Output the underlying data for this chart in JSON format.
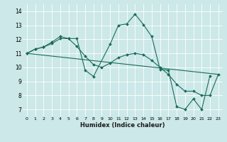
{
  "xlabel": "Humidex (Indice chaleur)",
  "bg_color": "#cce8e8",
  "grid_color": "#ffffff",
  "line_color": "#1a6b5a",
  "xlim": [
    -0.5,
    23.5
  ],
  "ylim": [
    6.5,
    14.5
  ],
  "xticks": [
    0,
    1,
    2,
    3,
    4,
    5,
    6,
    7,
    8,
    9,
    10,
    11,
    12,
    13,
    14,
    15,
    16,
    17,
    18,
    19,
    20,
    21,
    22,
    23
  ],
  "yticks": [
    7,
    8,
    9,
    10,
    11,
    12,
    13,
    14
  ],
  "line1_x": [
    0,
    1,
    2,
    3,
    4,
    5,
    6,
    7,
    8,
    10,
    11,
    12,
    13,
    14,
    15,
    16,
    17,
    18,
    19,
    20,
    21,
    22
  ],
  "line1_y": [
    11.0,
    11.3,
    11.45,
    11.8,
    12.2,
    12.05,
    12.05,
    9.8,
    9.35,
    11.65,
    13.0,
    13.1,
    13.8,
    13.05,
    12.2,
    9.85,
    9.8,
    7.2,
    7.0,
    7.75,
    7.0,
    9.4
  ],
  "line2_x": [
    0,
    1,
    2,
    3,
    4,
    5,
    6,
    7,
    8,
    9,
    10,
    11,
    12,
    13,
    14,
    15,
    16,
    17,
    18,
    19,
    20,
    21,
    22,
    23
  ],
  "line2_y": [
    11.0,
    11.3,
    11.45,
    11.7,
    12.05,
    12.05,
    11.5,
    10.8,
    10.2,
    10.0,
    10.3,
    10.7,
    10.9,
    11.0,
    10.9,
    10.5,
    10.0,
    9.5,
    8.8,
    8.3,
    8.3,
    8.0,
    8.0,
    9.5
  ],
  "line3_x": [
    0,
    23
  ],
  "line3_y": [
    11.0,
    9.5
  ]
}
